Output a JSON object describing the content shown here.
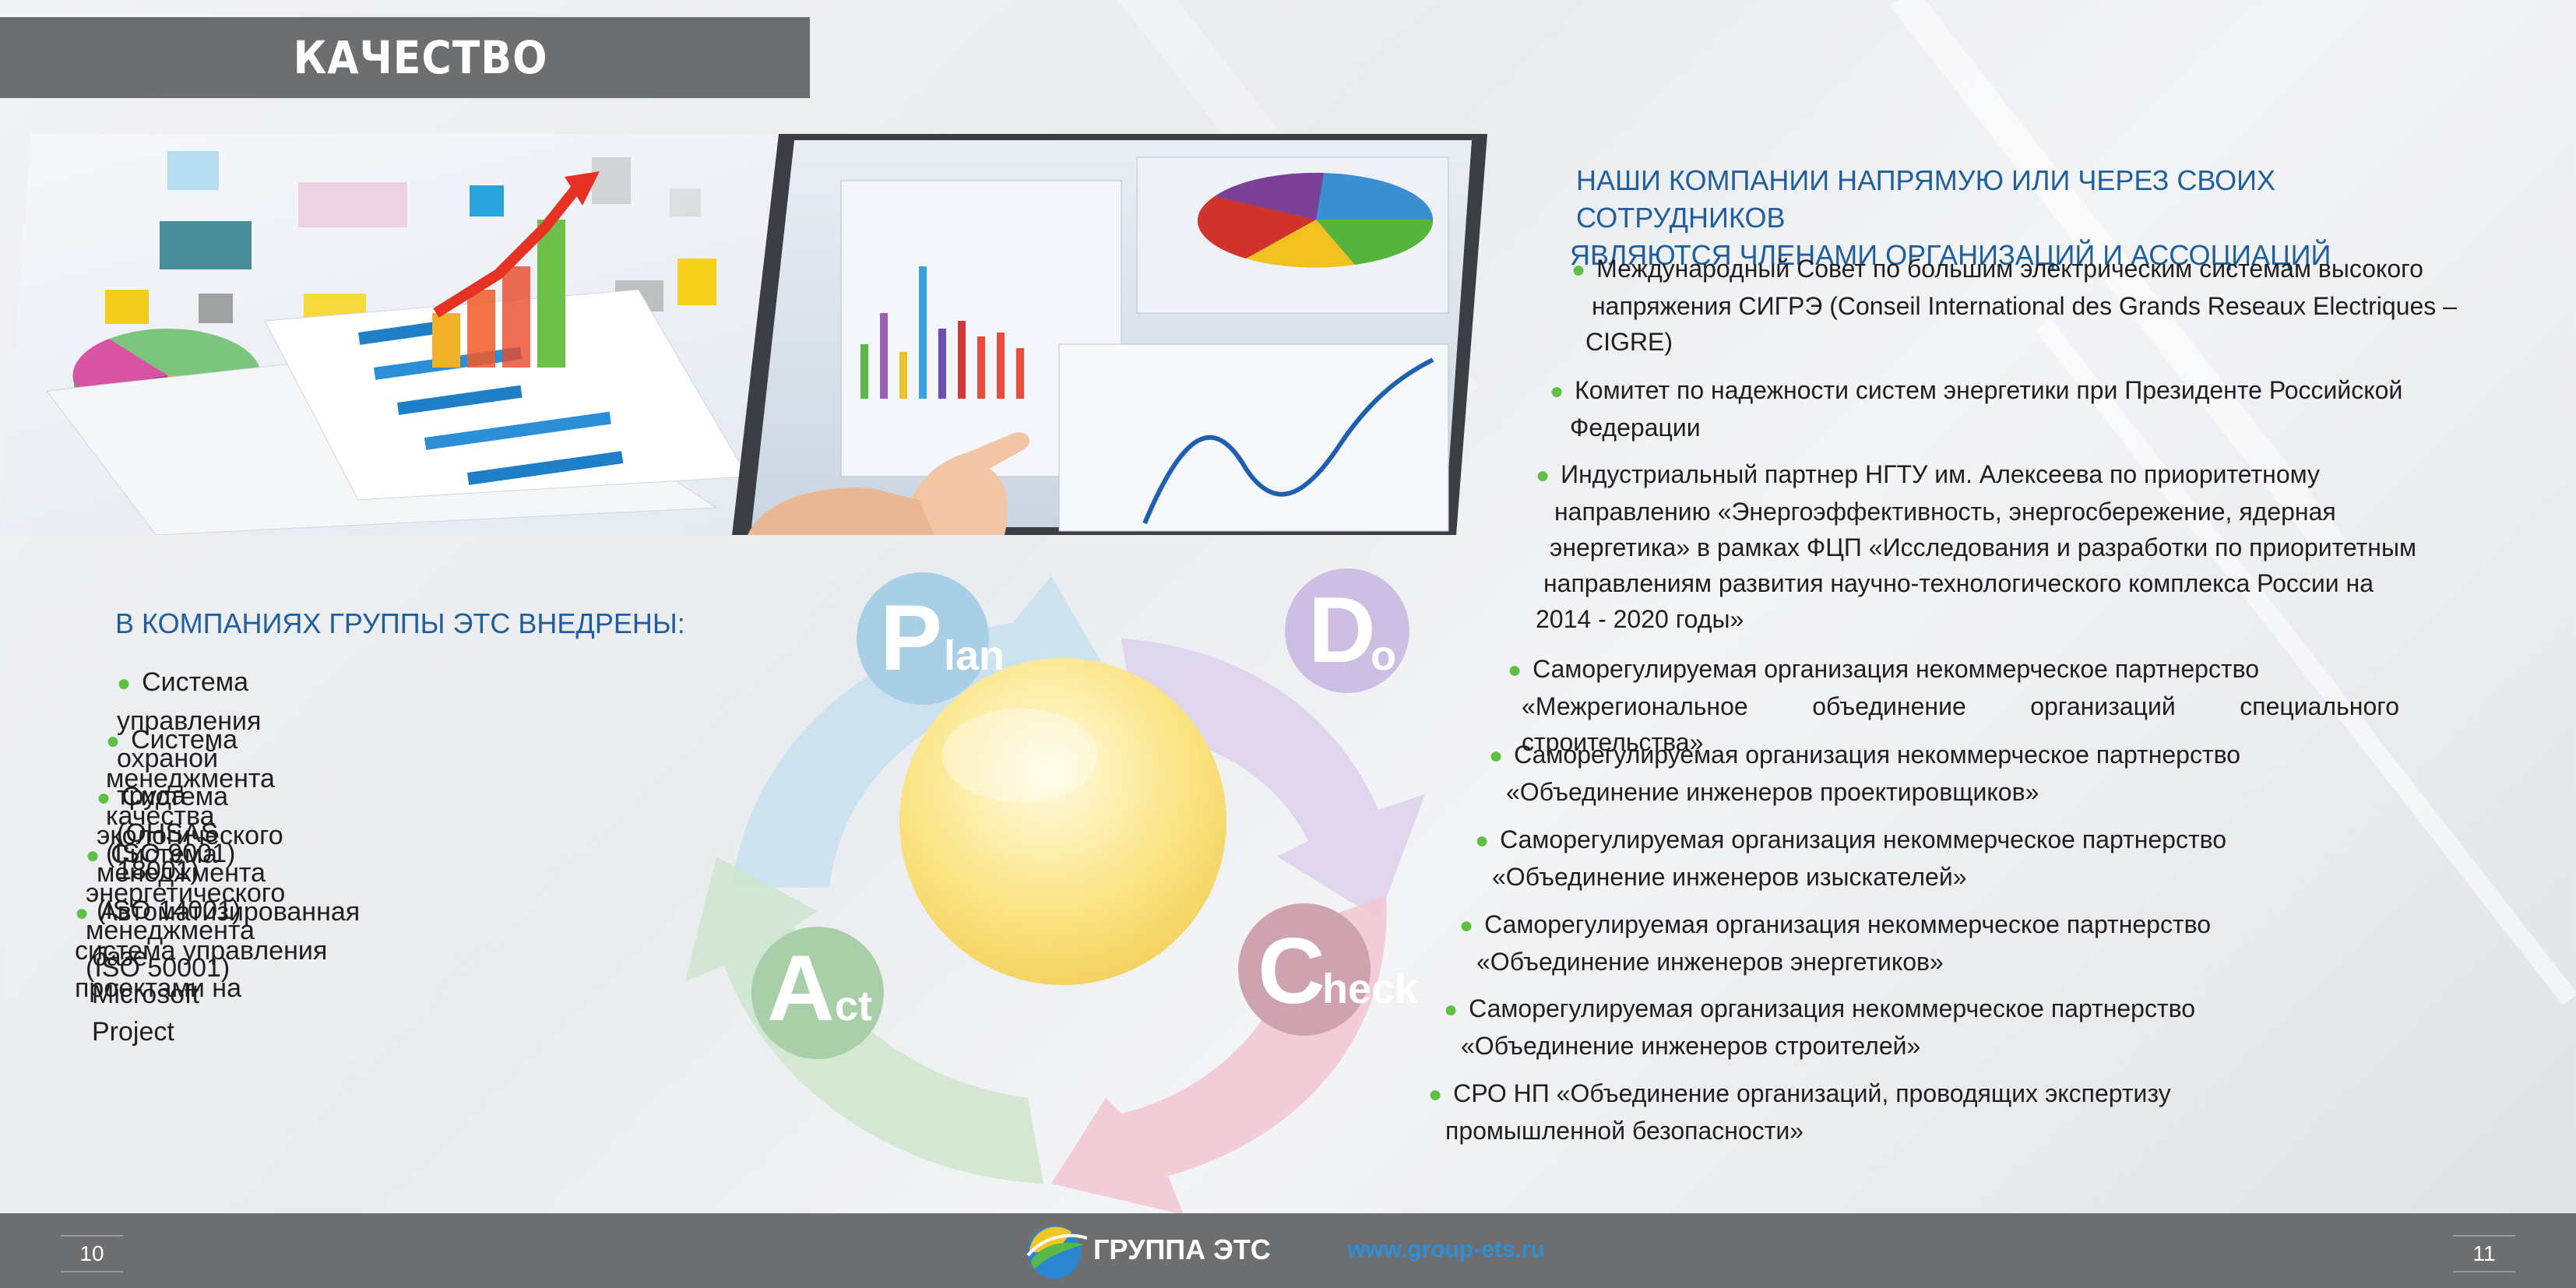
{
  "header": {
    "title": "КАЧЕСТВО"
  },
  "left": {
    "heading": "В КОМПАНИЯХ ГРУППЫ ЭТС ВНЕДРЕНЫ:",
    "items": [
      {
        "line1": "Система управления охраной труда (OHSAS 18001)"
      },
      {
        "line1": "Система менеджмента качества (ISO 9001)"
      },
      {
        "line1": "Система экологического менеджмента (ISO 14001)"
      },
      {
        "line1": "Система энергетического менеджмента (ISO 50001)"
      },
      {
        "line1": "Автоматизированная система управления проектами на",
        "line2": "базе Microsoft Project"
      }
    ]
  },
  "pdca": {
    "plan_letter": "P",
    "plan_rest": "lan",
    "do_letter": "D",
    "do_rest": "o",
    "check_letter": "C",
    "check_rest": "heck",
    "act_letter": "A",
    "act_rest": "ct"
  },
  "right": {
    "heading_line1": "НАШИ КОМПАНИИ НАПРЯМУЮ ИЛИ ЧЕРЕЗ СВОИХ СОТРУДНИКОВ",
    "heading_line2": "ЯВЛЯЮТСЯ ЧЛЕНАМИ ОРГАНИЗАЦИЙ И АССОЦИАЦИЙ",
    "items": [
      {
        "lines": [
          "Международный Совет по большим электрическим системам высокого",
          "напряжения СИГРЭ (Conseil International des Grands Reseaux Electriques –",
          "CIGRE)"
        ]
      },
      {
        "lines": [
          "Комитет по надежности систем энергетики при Президенте Российской",
          "Федерации"
        ]
      },
      {
        "lines": [
          "Индустриальный партнер НГТУ им. Алексеева по приоритетному",
          "направлению «Энергоэффективность, энергосбережение, ядерная",
          "энергетика» в рамках ФЦП «Исследования и разработки по приоритетным",
          "направлениям развития научно-технологического комплекса России на",
          "2014 - 2020 годы»"
        ]
      },
      {
        "lines": [
          "Саморегулируемая организация некоммерческое партнерство",
          "«Межрегиональное объединение организаций специального строительства»"
        ]
      },
      {
        "lines": [
          "Саморегулируемая организация некоммерческое партнерство",
          "«Объединение инженеров проектировщиков»"
        ]
      },
      {
        "lines": [
          "Саморегулируемая организация некоммерческое партнерство",
          "«Объединение инженеров изыскателей»"
        ]
      },
      {
        "lines": [
          "Саморегулируемая организация некоммерческое партнерство",
          "«Объединение инженеров энергетиков»"
        ]
      },
      {
        "lines": [
          "Саморегулируемая организация некоммерческое партнерство",
          "«Объединение инженеров строителей»"
        ]
      },
      {
        "lines": [
          "СРО НП «Объединение организаций, проводящих экспертизу",
          "промышленной безопасности»"
        ]
      }
    ]
  },
  "footer": {
    "page_left": "10",
    "page_right": "11",
    "brand": "ГРУППА ЭТС",
    "website": "www.group-ets.ru"
  },
  "colors": {
    "bar_gray": "#6d6e70",
    "heading_blue": "#1f5f9e",
    "bullet_green": "#5fbf45",
    "link_blue": "#2d8fd8"
  },
  "icons": [
    "bullet-dot-icon",
    "group-ets-logo-icon"
  ]
}
